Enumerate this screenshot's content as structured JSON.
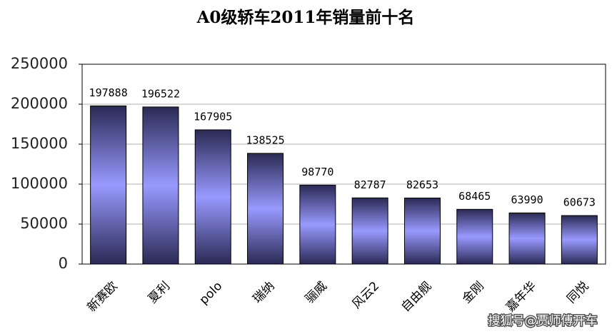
{
  "chart_data": {
    "type": "bar",
    "title": "A0级轿车2011年销量前十名",
    "categories": [
      "新赛欧",
      "夏利",
      "polo",
      "瑞纳",
      "骊威",
      "风云2",
      "自由舰",
      "金刚",
      "嘉年华",
      "同悦"
    ],
    "values": [
      197888,
      196522,
      167905,
      138525,
      98770,
      82787,
      82653,
      68465,
      63990,
      60673
    ],
    "color": "#9999ff",
    "ylim": [
      0,
      250000
    ],
    "yticks": [
      0,
      50000,
      100000,
      150000,
      200000,
      250000
    ],
    "grid": true
  },
  "watermark": "搜狐号@贾师傅开车"
}
